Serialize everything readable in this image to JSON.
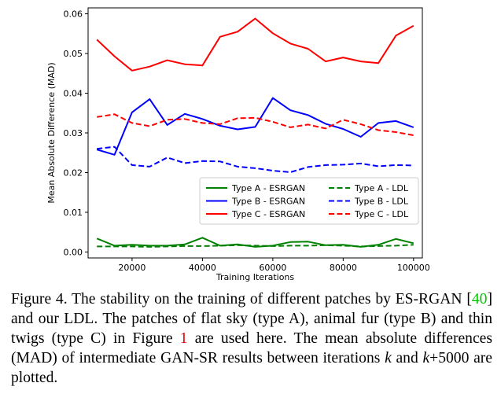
{
  "chart_data": {
    "type": "line",
    "xlabel": "Training Iterations",
    "ylabel": "Mean Absolute Difference (MAD)",
    "xlim": [
      7500,
      102500
    ],
    "ylim": [
      -0.0015,
      0.0615
    ],
    "x_ticks": [
      20000,
      40000,
      60000,
      80000,
      100000
    ],
    "x_tick_labels": [
      "20000",
      "40000",
      "60000",
      "80000",
      "100000"
    ],
    "y_ticks": [
      0.0,
      0.01,
      0.02,
      0.03,
      0.04,
      0.05,
      0.06
    ],
    "y_tick_labels": [
      "0.00",
      "0.01",
      "0.02",
      "0.03",
      "0.04",
      "0.05",
      "0.06"
    ],
    "grid": false,
    "legend_position": "lower-right",
    "x": [
      10000,
      15000,
      20000,
      25000,
      30000,
      35000,
      40000,
      45000,
      50000,
      55000,
      60000,
      65000,
      70000,
      75000,
      80000,
      85000,
      90000,
      95000,
      100000
    ],
    "series": [
      {
        "name": "Type A - ESRGAN",
        "color": "#008000",
        "dash": "solid",
        "values": [
          0.0034,
          0.0016,
          0.0018,
          0.0016,
          0.0016,
          0.0019,
          0.0036,
          0.0016,
          0.0019,
          0.0013,
          0.0016,
          0.0025,
          0.0026,
          0.0017,
          0.0018,
          0.0013,
          0.0018,
          0.0033,
          0.0022
        ]
      },
      {
        "name": "Type B - ESRGAN",
        "color": "#0000ff",
        "dash": "solid",
        "values": [
          0.0258,
          0.0245,
          0.0352,
          0.0385,
          0.032,
          0.0348,
          0.0335,
          0.0318,
          0.0309,
          0.0315,
          0.0388,
          0.0357,
          0.0345,
          0.0323,
          0.031,
          0.029,
          0.0325,
          0.033,
          0.0314
        ]
      },
      {
        "name": "Type C - ESRGAN",
        "color": "#ff0000",
        "dash": "solid",
        "values": [
          0.0535,
          0.0493,
          0.0457,
          0.0467,
          0.0483,
          0.0473,
          0.047,
          0.0542,
          0.0555,
          0.0588,
          0.0551,
          0.0525,
          0.0512,
          0.048,
          0.049,
          0.048,
          0.0476,
          0.0545,
          0.057
        ]
      },
      {
        "name": "Type A - LDL",
        "color": "#008000",
        "dash": "dashed",
        "values": [
          0.0014,
          0.0014,
          0.0014,
          0.0013,
          0.0014,
          0.0015,
          0.0015,
          0.0016,
          0.0017,
          0.0016,
          0.0015,
          0.0016,
          0.0016,
          0.0017,
          0.0016,
          0.0014,
          0.0015,
          0.0016,
          0.0018
        ]
      },
      {
        "name": "Type B - LDL",
        "color": "#0000ff",
        "dash": "dashed",
        "values": [
          0.026,
          0.0265,
          0.0219,
          0.0215,
          0.0238,
          0.0224,
          0.0229,
          0.0228,
          0.0215,
          0.0211,
          0.0205,
          0.0201,
          0.0214,
          0.0219,
          0.022,
          0.0223,
          0.0216,
          0.0219,
          0.0218
        ]
      },
      {
        "name": "Type C - LDL",
        "color": "#ff0000",
        "dash": "dashed",
        "values": [
          0.034,
          0.0347,
          0.0325,
          0.0317,
          0.0333,
          0.0335,
          0.0325,
          0.0322,
          0.0337,
          0.0338,
          0.0328,
          0.0314,
          0.0321,
          0.0311,
          0.0333,
          0.0322,
          0.0307,
          0.0302,
          0.0294
        ]
      }
    ]
  },
  "caption": {
    "p1": "Figure 4.  The stability on the training of different patches by ES-RGAN [",
    "ref1": "40",
    "p2": "] and our LDL. The patches of flat sky (type A), animal fur (type B) and thin twigs (type C) in Figure ",
    "ref2": "1",
    "p3": " are used here. The mean absolute differences (MAD) of intermediate GAN-SR results between iterations ",
    "k1": "k",
    "p4": " and ",
    "k2": "k",
    "p5": "+5000 are plotted."
  }
}
